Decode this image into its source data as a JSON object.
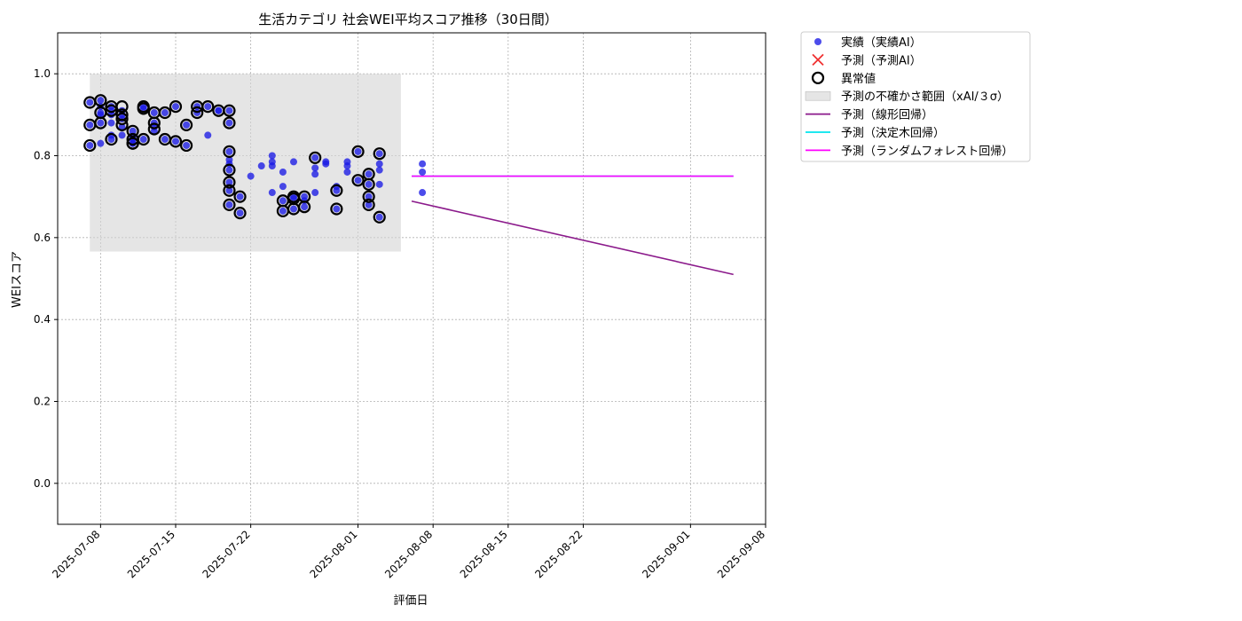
{
  "chart_data": {
    "type": "scatter",
    "title": "生活カテゴリ 社会WEI平均スコア推移（30日間）",
    "xlabel": "評価日",
    "ylabel": "WEIスコア",
    "xlim": [
      "2025-07-04",
      "2025-09-08"
    ],
    "ylim": [
      -0.1,
      1.1
    ],
    "x_ticks": [
      "2025-07-08",
      "2025-07-15",
      "2025-07-22",
      "2025-08-01",
      "2025-08-08",
      "2025-08-15",
      "2025-08-22",
      "2025-09-01",
      "2025-09-08"
    ],
    "y_ticks": [
      "0.0",
      "0.2",
      "0.4",
      "0.6",
      "0.8",
      "1.0"
    ],
    "grid": true,
    "legend_position": "outside-right-top",
    "colors": {
      "actual": "#1a1ae6",
      "forecast_x": "#f03030",
      "anomaly": "#000000",
      "band": "#d3d3d3",
      "linear": "#8b1a8b",
      "tree": "#00e5ee",
      "forest": "#ff00ff"
    },
    "uncertainty_band": {
      "x": [
        "2025-07-07",
        "2025-08-05"
      ],
      "y": [
        0.566,
        1.0
      ]
    },
    "series": [
      {
        "name": "実績（実績AI）",
        "kind": "scatter",
        "points": [
          [
            "2025-07-07",
            0.825
          ],
          [
            "2025-07-07",
            0.93
          ],
          [
            "2025-07-07",
            0.875
          ],
          [
            "2025-07-08",
            0.905
          ],
          [
            "2025-07-08",
            0.935
          ],
          [
            "2025-07-08",
            0.88
          ],
          [
            "2025-07-08",
            0.9
          ],
          [
            "2025-07-08",
            0.92
          ],
          [
            "2025-07-08",
            0.83
          ],
          [
            "2025-07-09",
            0.85
          ],
          [
            "2025-07-09",
            0.84
          ],
          [
            "2025-07-09",
            0.91
          ],
          [
            "2025-07-09",
            0.88
          ],
          [
            "2025-07-09",
            0.9
          ],
          [
            "2025-07-09",
            0.92
          ],
          [
            "2025-07-10",
            0.89
          ],
          [
            "2025-07-10",
            0.87
          ],
          [
            "2025-07-10",
            0.91
          ],
          [
            "2025-07-10",
            0.9
          ],
          [
            "2025-07-10",
            0.85
          ],
          [
            "2025-07-11",
            0.84
          ],
          [
            "2025-07-11",
            0.86
          ],
          [
            "2025-07-11",
            0.83
          ],
          [
            "2025-07-11",
            0.83
          ],
          [
            "2025-07-11",
            0.845
          ],
          [
            "2025-07-12",
            0.84
          ],
          [
            "2025-07-12",
            0.92
          ],
          [
            "2025-07-12",
            0.915
          ],
          [
            "2025-07-13",
            0.905
          ],
          [
            "2025-07-13",
            0.88
          ],
          [
            "2025-07-13",
            0.87
          ],
          [
            "2025-07-13",
            0.86
          ],
          [
            "2025-07-14",
            0.84
          ],
          [
            "2025-07-14",
            0.905
          ],
          [
            "2025-07-15",
            0.92
          ],
          [
            "2025-07-15",
            0.835
          ],
          [
            "2025-07-16",
            0.825
          ],
          [
            "2025-07-16",
            0.875
          ],
          [
            "2025-07-17",
            0.905
          ],
          [
            "2025-07-17",
            0.92
          ],
          [
            "2025-07-18",
            0.92
          ],
          [
            "2025-07-18",
            0.85
          ],
          [
            "2025-07-19",
            0.91
          ],
          [
            "2025-07-19",
            0.91
          ],
          [
            "2025-07-20",
            0.91
          ],
          [
            "2025-07-20",
            0.88
          ],
          [
            "2025-07-20",
            0.81
          ],
          [
            "2025-07-20",
            0.79
          ],
          [
            "2025-07-20",
            0.78
          ],
          [
            "2025-07-20",
            0.765
          ],
          [
            "2025-07-20",
            0.735
          ],
          [
            "2025-07-20",
            0.715
          ],
          [
            "2025-07-20",
            0.68
          ],
          [
            "2025-07-21",
            0.66
          ],
          [
            "2025-07-21",
            0.7
          ],
          [
            "2025-07-22",
            0.75
          ],
          [
            "2025-07-23",
            0.775
          ],
          [
            "2025-07-24",
            0.8
          ],
          [
            "2025-07-24",
            0.785
          ],
          [
            "2025-07-24",
            0.775
          ],
          [
            "2025-07-24",
            0.71
          ],
          [
            "2025-07-25",
            0.76
          ],
          [
            "2025-07-25",
            0.725
          ],
          [
            "2025-07-25",
            0.69
          ],
          [
            "2025-07-25",
            0.665
          ],
          [
            "2025-07-26",
            0.785
          ],
          [
            "2025-07-26",
            0.7
          ],
          [
            "2025-07-26",
            0.67
          ],
          [
            "2025-07-26",
            0.695
          ],
          [
            "2025-07-27",
            0.675
          ],
          [
            "2025-07-27",
            0.69
          ],
          [
            "2025-07-27",
            0.7
          ],
          [
            "2025-07-28",
            0.795
          ],
          [
            "2025-07-28",
            0.77
          ],
          [
            "2025-07-28",
            0.755
          ],
          [
            "2025-07-28",
            0.71
          ],
          [
            "2025-07-29",
            0.785
          ],
          [
            "2025-07-29",
            0.78
          ],
          [
            "2025-07-30",
            0.67
          ],
          [
            "2025-07-30",
            0.715
          ],
          [
            "2025-07-30",
            0.725
          ],
          [
            "2025-07-31",
            0.785
          ],
          [
            "2025-07-31",
            0.775
          ],
          [
            "2025-07-31",
            0.76
          ],
          [
            "2025-08-01",
            0.81
          ],
          [
            "2025-08-01",
            0.74
          ],
          [
            "2025-08-02",
            0.755
          ],
          [
            "2025-08-02",
            0.73
          ],
          [
            "2025-08-02",
            0.7
          ],
          [
            "2025-08-02",
            0.68
          ],
          [
            "2025-08-03",
            0.805
          ],
          [
            "2025-08-03",
            0.78
          ],
          [
            "2025-08-03",
            0.765
          ],
          [
            "2025-08-03",
            0.73
          ],
          [
            "2025-08-03",
            0.65
          ],
          [
            "2025-08-07",
            0.78
          ],
          [
            "2025-08-07",
            0.76
          ],
          [
            "2025-08-07",
            0.71
          ]
        ]
      },
      {
        "name": "予測（予測AI）",
        "kind": "x-marker",
        "points": []
      },
      {
        "name": "異常値",
        "kind": "ring",
        "points": [
          [
            "2025-07-07",
            0.825
          ],
          [
            "2025-07-07",
            0.93
          ],
          [
            "2025-07-07",
            0.875
          ],
          [
            "2025-07-08",
            0.905
          ],
          [
            "2025-07-08",
            0.935
          ],
          [
            "2025-07-08",
            0.88
          ],
          [
            "2025-07-09",
            0.84
          ],
          [
            "2025-07-09",
            0.91
          ],
          [
            "2025-07-09",
            0.92
          ],
          [
            "2025-07-10",
            0.89
          ],
          [
            "2025-07-10",
            0.875
          ],
          [
            "2025-07-10",
            0.92
          ],
          [
            "2025-07-10",
            0.9
          ],
          [
            "2025-07-11",
            0.84
          ],
          [
            "2025-07-11",
            0.86
          ],
          [
            "2025-07-11",
            0.83
          ],
          [
            "2025-07-11",
            0.83
          ],
          [
            "2025-07-12",
            0.84
          ],
          [
            "2025-07-12",
            0.92
          ],
          [
            "2025-07-12",
            0.915
          ],
          [
            "2025-07-13",
            0.905
          ],
          [
            "2025-07-13",
            0.88
          ],
          [
            "2025-07-13",
            0.865
          ],
          [
            "2025-07-14",
            0.84
          ],
          [
            "2025-07-14",
            0.905
          ],
          [
            "2025-07-15",
            0.92
          ],
          [
            "2025-07-15",
            0.835
          ],
          [
            "2025-07-16",
            0.825
          ],
          [
            "2025-07-16",
            0.875
          ],
          [
            "2025-07-17",
            0.905
          ],
          [
            "2025-07-17",
            0.92
          ],
          [
            "2025-07-18",
            0.92
          ],
          [
            "2025-07-19",
            0.91
          ],
          [
            "2025-07-20",
            0.91
          ],
          [
            "2025-07-20",
            0.88
          ],
          [
            "2025-07-20",
            0.81
          ],
          [
            "2025-07-20",
            0.765
          ],
          [
            "2025-07-20",
            0.735
          ],
          [
            "2025-07-20",
            0.715
          ],
          [
            "2025-07-20",
            0.68
          ],
          [
            "2025-07-21",
            0.66
          ],
          [
            "2025-07-21",
            0.7
          ],
          [
            "2025-07-25",
            0.69
          ],
          [
            "2025-07-25",
            0.665
          ],
          [
            "2025-07-26",
            0.7
          ],
          [
            "2025-07-26",
            0.67
          ],
          [
            "2025-07-26",
            0.695
          ],
          [
            "2025-07-27",
            0.675
          ],
          [
            "2025-07-27",
            0.7
          ],
          [
            "2025-07-28",
            0.795
          ],
          [
            "2025-07-30",
            0.67
          ],
          [
            "2025-07-30",
            0.715
          ],
          [
            "2025-08-01",
            0.81
          ],
          [
            "2025-08-01",
            0.74
          ],
          [
            "2025-08-02",
            0.755
          ],
          [
            "2025-08-02",
            0.73
          ],
          [
            "2025-08-02",
            0.7
          ],
          [
            "2025-08-02",
            0.68
          ],
          [
            "2025-08-03",
            0.805
          ],
          [
            "2025-08-03",
            0.65
          ]
        ]
      },
      {
        "name": "予測の不確かさ範囲（xAI/３σ）",
        "kind": "band"
      },
      {
        "name": "予測（線形回帰）",
        "kind": "line",
        "points": [
          [
            "2025-08-06",
            0.689
          ],
          [
            "2025-09-05",
            0.51
          ]
        ]
      },
      {
        "name": "予測（決定木回帰）",
        "kind": "line",
        "points": [
          [
            "2025-08-06",
            0.75
          ],
          [
            "2025-09-05",
            0.75
          ]
        ]
      },
      {
        "name": "予測（ランダムフォレスト回帰）",
        "kind": "line",
        "points": [
          [
            "2025-08-06",
            0.75
          ],
          [
            "2025-09-05",
            0.75
          ]
        ]
      }
    ]
  }
}
